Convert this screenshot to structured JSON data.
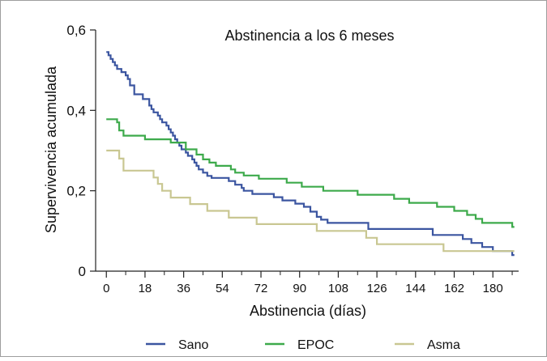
{
  "chart_data": {
    "type": "line",
    "step": true,
    "title": "Abstinencia a los 6 meses",
    "xlabel": "Abstinencia (días)",
    "ylabel": "Supervivencia acumulada",
    "xlim": [
      -5,
      192
    ],
    "ylim": [
      0,
      0.6
    ],
    "x_ticks": [
      0,
      18,
      36,
      54,
      72,
      90,
      108,
      126,
      144,
      162,
      180
    ],
    "x_minor_ticks": [
      9,
      27,
      45,
      63,
      81,
      99,
      117,
      135,
      153,
      171,
      189
    ],
    "y_ticks": [
      {
        "value": 0,
        "label": "0"
      },
      {
        "value": 0.2,
        "label": "0,2"
      },
      {
        "value": 0.4,
        "label": "0,4"
      },
      {
        "value": 0.6,
        "label": "0,6"
      }
    ],
    "legend_position": "bottom",
    "grid": false,
    "series": [
      {
        "name": "Sano",
        "color": "#3b55a0",
        "points": [
          [
            0,
            0.545
          ],
          [
            1,
            0.537
          ],
          [
            2,
            0.528
          ],
          [
            3,
            0.52
          ],
          [
            4,
            0.512
          ],
          [
            5,
            0.503
          ],
          [
            7,
            0.495
          ],
          [
            9,
            0.487
          ],
          [
            10,
            0.478
          ],
          [
            11,
            0.462
          ],
          [
            13,
            0.44
          ],
          [
            17,
            0.428
          ],
          [
            20,
            0.412
          ],
          [
            21,
            0.403
          ],
          [
            22,
            0.395
          ],
          [
            24,
            0.387
          ],
          [
            25,
            0.378
          ],
          [
            26,
            0.37
          ],
          [
            28,
            0.362
          ],
          [
            29,
            0.353
          ],
          [
            30,
            0.345
          ],
          [
            31,
            0.337
          ],
          [
            32,
            0.328
          ],
          [
            33,
            0.32
          ],
          [
            34,
            0.312
          ],
          [
            35,
            0.303
          ],
          [
            37,
            0.295
          ],
          [
            38,
            0.287
          ],
          [
            40,
            0.278
          ],
          [
            41,
            0.27
          ],
          [
            42,
            0.262
          ],
          [
            43,
            0.253
          ],
          [
            45,
            0.245
          ],
          [
            47,
            0.237
          ],
          [
            49,
            0.232
          ],
          [
            57,
            0.224
          ],
          [
            60,
            0.215
          ],
          [
            63,
            0.207
          ],
          [
            64,
            0.2
          ],
          [
            68,
            0.192
          ],
          [
            78,
            0.184
          ],
          [
            82,
            0.176
          ],
          [
            88,
            0.168
          ],
          [
            92,
            0.16
          ],
          [
            95,
            0.148
          ],
          [
            98,
            0.135
          ],
          [
            100,
            0.128
          ],
          [
            103,
            0.12
          ],
          [
            122,
            0.105
          ],
          [
            152,
            0.09
          ],
          [
            166,
            0.08
          ],
          [
            170,
            0.07
          ],
          [
            175,
            0.06
          ],
          [
            180,
            0.05
          ],
          [
            189,
            0.04
          ],
          [
            190,
            0.04
          ]
        ]
      },
      {
        "name": "EPOC",
        "color": "#3daa4b",
        "points": [
          [
            0,
            0.378
          ],
          [
            5,
            0.37
          ],
          [
            6,
            0.35
          ],
          [
            8,
            0.337
          ],
          [
            18,
            0.328
          ],
          [
            30,
            0.32
          ],
          [
            37,
            0.303
          ],
          [
            42,
            0.29
          ],
          [
            45,
            0.278
          ],
          [
            48,
            0.27
          ],
          [
            51,
            0.262
          ],
          [
            58,
            0.253
          ],
          [
            60,
            0.245
          ],
          [
            64,
            0.238
          ],
          [
            71,
            0.23
          ],
          [
            84,
            0.22
          ],
          [
            91,
            0.21
          ],
          [
            101,
            0.2
          ],
          [
            117,
            0.19
          ],
          [
            134,
            0.18
          ],
          [
            141,
            0.17
          ],
          [
            154,
            0.16
          ],
          [
            162,
            0.15
          ],
          [
            168,
            0.14
          ],
          [
            172,
            0.13
          ],
          [
            175,
            0.12
          ],
          [
            189,
            0.11
          ],
          [
            190,
            0.11
          ]
        ]
      },
      {
        "name": "Asma",
        "color": "#c9c792",
        "points": [
          [
            0,
            0.3
          ],
          [
            6,
            0.28
          ],
          [
            8,
            0.25
          ],
          [
            22,
            0.233
          ],
          [
            24,
            0.217
          ],
          [
            26,
            0.2
          ],
          [
            30,
            0.183
          ],
          [
            39,
            0.167
          ],
          [
            47,
            0.15
          ],
          [
            57,
            0.133
          ],
          [
            70,
            0.117
          ],
          [
            98,
            0.1
          ],
          [
            121,
            0.083
          ],
          [
            126,
            0.067
          ],
          [
            157,
            0.05
          ],
          [
            190,
            0.05
          ]
        ]
      }
    ]
  }
}
